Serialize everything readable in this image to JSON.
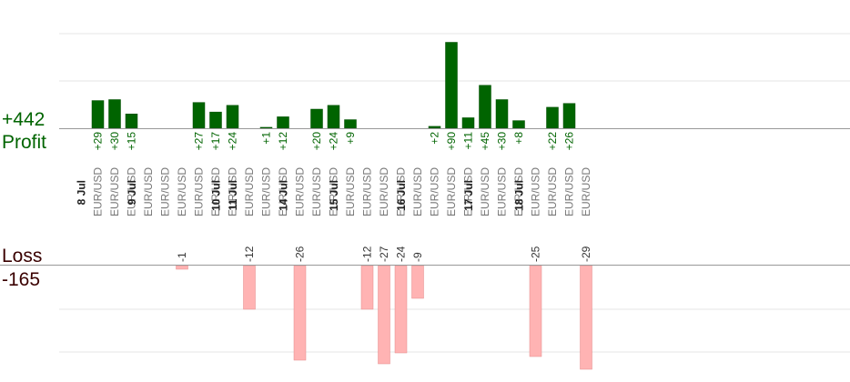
{
  "profit_total": "+442",
  "profit_label": "Profit",
  "loss_label": "Loss",
  "loss_total": "-165",
  "colors": {
    "profit_bar": "#006400",
    "profit_bar_edge": "#004d00",
    "profit_text": "#006400",
    "loss_bar": "#ffb3b3",
    "loss_bar_edge": "#e58a8a",
    "loss_text": "#333333",
    "loss_title": "#3a0000",
    "date_text": "#222222",
    "pair_text": "#777777",
    "grid": "#e6e6e6",
    "axis": "#999999"
  },
  "chart_data": {
    "type": "bar",
    "columns": [
      {
        "date": "8 Jul",
        "pair": "EUR/USD",
        "profit": 29
      },
      {
        "pair": "EUR/USD",
        "profit": 30
      },
      {
        "pair": "EUR/USD",
        "profit": 15
      },
      {
        "date": "9 Jul",
        "pair": "EUR/USD"
      },
      {
        "pair": "EUR/USD"
      },
      {
        "pair": "EUR/USD",
        "loss": -1
      },
      {
        "pair": "EUR/USD",
        "profit": 27
      },
      {
        "pair": "EUR/USD",
        "profit": 17
      },
      {
        "date": "10 Jul",
        "pair": "EUR/USD",
        "profit": 24
      },
      {
        "date": "11 Jul",
        "pair": "EUR/USD",
        "loss": -12
      },
      {
        "pair": "EUR/USD",
        "profit": 1
      },
      {
        "pair": "EUR/USD",
        "profit": 12
      },
      {
        "date": "14 Jul",
        "pair": "EUR/USD",
        "loss": -26
      },
      {
        "pair": "EUR/USD",
        "profit": 20
      },
      {
        "pair": "EUR/USD",
        "profit": 24
      },
      {
        "date": "15 Jul",
        "pair": "EUR/USD",
        "profit": 9
      },
      {
        "pair": "EUR/USD",
        "loss": -12
      },
      {
        "pair": "EUR/USD",
        "loss": -27
      },
      {
        "pair": "EUR/USD",
        "loss": -24
      },
      {
        "date": "16 Jul",
        "pair": "EUR/USD",
        "loss": -9
      },
      {
        "pair": "EUR/USD",
        "profit": 2
      },
      {
        "pair": "EUR/USD",
        "profit": 90
      },
      {
        "pair": "EUR/USD",
        "profit": 11
      },
      {
        "date": "17 Jul",
        "pair": "EUR/USD",
        "profit": 45
      },
      {
        "pair": "EUR/USD",
        "profit": 30
      },
      {
        "pair": "EUR/USD",
        "profit": 8
      },
      {
        "date": "18 Jul",
        "pair": "EUR/USD",
        "loss": -25
      },
      {
        "pair": "EUR/USD",
        "profit": 22
      },
      {
        "pair": "EUR/USD",
        "profit": 26
      },
      {
        "pair": "EUR/USD",
        "loss": -29
      }
    ]
  }
}
